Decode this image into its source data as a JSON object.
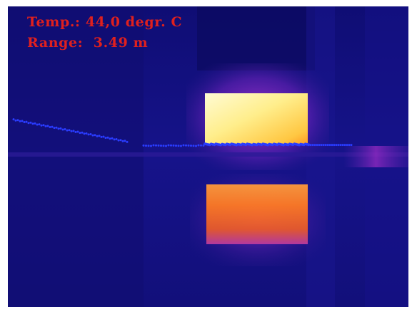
{
  "overlay": {
    "temperature_text": "Temp.: 44,0 degr. C",
    "range_text": "Range:  3.49 m"
  },
  "colors": {
    "overlay_text": "#e0201e",
    "background_dark_blue": "#12107c",
    "scan_points": "#2a3cff",
    "hot_core": "#fff6b0",
    "hot_orange": "#ff6a1a",
    "warm_magenta": "#c02ad6"
  },
  "icons": {
    "scan_point": "scan-point-dot"
  }
}
